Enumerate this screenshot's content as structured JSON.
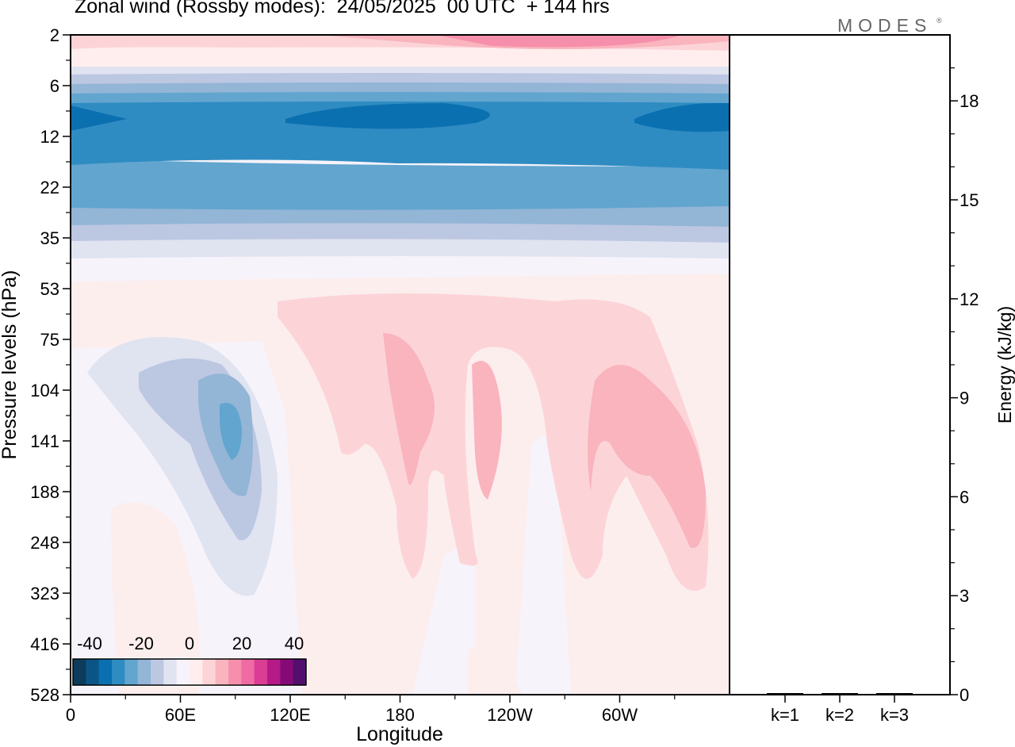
{
  "brand": {
    "name": "MODES",
    "mark": "®"
  },
  "chart_data": [
    {
      "type": "heatmap",
      "title": "Zonal wind (Rossby modes):  24/05/2025  00 UTC  + 144 hrs",
      "xlabel": "Longitude",
      "ylabel": "Pressure levels (hPa)",
      "x_ticks": [
        "0",
        "60E",
        "120E",
        "180",
        "120W",
        "60W"
      ],
      "x_tick_degrees": [
        0,
        60,
        120,
        180,
        240,
        300
      ],
      "xlim": [
        0,
        360
      ],
      "y_ticks": [
        "2",
        "6",
        "12",
        "22",
        "35",
        "53",
        "75",
        "104",
        "141",
        "188",
        "248",
        "323",
        "416",
        "528"
      ],
      "y_scale": "model levels (irregular, top = 2 hPa, bottom = 528 hPa)",
      "colorbar": {
        "labels": [
          "-40",
          "-20",
          "0",
          "20",
          "40"
        ],
        "colors": [
          "#0d3b5c",
          "#0a5585",
          "#0b70b0",
          "#2f8cc2",
          "#62a5cf",
          "#93b5d6",
          "#bcc7e2",
          "#e0e3f0",
          "#f6f3fa",
          "#ffeeed",
          "#fcd4d8",
          "#f9b4be",
          "#f68fab",
          "#f06aa4",
          "#db3d95",
          "#b51a87",
          "#850a78",
          "#520f6e"
        ]
      },
      "features": [
        {
          "level_range_hPa": [
            5,
            8
          ],
          "value_ms": -20,
          "description_colour": "#93b5d6"
        },
        {
          "level_range_hPa": [
            8,
            16
          ],
          "value_ms": -30,
          "description_colour": "#0b70b0"
        },
        {
          "level_range_hPa": [
            16,
            25
          ],
          "value_ms": -25,
          "description_colour": "#62a5cf"
        },
        {
          "level_range_hPa": [
            2,
            3
          ],
          "lon_range": [
            150,
            310
          ],
          "value_ms": 20,
          "description_colour": "#f68fab"
        },
        {
          "lon_center": 88,
          "level_hPa": 150,
          "value_ms": -25,
          "description_colour": "#62a5cf"
        },
        {
          "lon_center": 190,
          "level_hPa": 130,
          "value_ms": 12,
          "description_colour": "#f9b4be"
        },
        {
          "lon_center": 300,
          "level_hPa": 150,
          "value_ms": 12,
          "description_colour": "#f9b4be"
        }
      ]
    },
    {
      "type": "bar",
      "ylabel": "Energy (kJ/kg)",
      "categories": [
        "k=1",
        "k=2",
        "k=3"
      ],
      "values": [
        0.03,
        0.02,
        0.03
      ],
      "ylim": [
        0,
        20
      ],
      "y_ticks": [
        "0",
        "3",
        "6",
        "9",
        "12",
        "15",
        "18"
      ],
      "y_tick_values": [
        0,
        3,
        6,
        9,
        12,
        15,
        18
      ],
      "bar_color": "#000000"
    }
  ]
}
